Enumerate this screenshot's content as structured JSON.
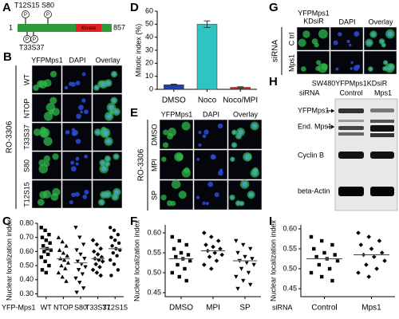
{
  "panels": {
    "A": {
      "label": "A",
      "sites": [
        "T12S15",
        "S80",
        "T33S37"
      ],
      "start": "1",
      "end": "857",
      "domain": "Kinase",
      "phospho": "P"
    },
    "B": {
      "label": "B",
      "columns": [
        "YFPMps1",
        "DAPI",
        "Overlay"
      ],
      "side": "RO-3306",
      "rows": [
        "WT",
        "NTOP",
        "T33S37",
        "S80",
        "T12S15"
      ]
    },
    "E": {
      "label": "E",
      "columns": [
        "YFPMps1",
        "DAPI",
        "Overlay"
      ],
      "side": "RO-3306",
      "rows": [
        "DMSO",
        "MPI",
        "SP"
      ]
    },
    "G": {
      "label": "G",
      "columns": [
        "YFPMps1",
        "DAPI",
        "Overlay"
      ],
      "column_note": "KDsiR",
      "side": "siRNA",
      "rows": [
        "C trl",
        "Mps1"
      ]
    },
    "H": {
      "label": "H",
      "title": "SW480YFPMps1KDsiR",
      "lanes_label": "siRNA",
      "lanes": [
        "Control",
        "Mps1"
      ],
      "bands": [
        "YFPMps1",
        "End. Mps1",
        "Cyclin B",
        "beta-Actin"
      ]
    }
  },
  "chart_data": [
    {
      "type": "bar",
      "panel": "D",
      "ylabel": "Mitotic index (%)",
      "categories": [
        "DMSO",
        "Noco",
        "Noco/MPI"
      ],
      "values": [
        3.5,
        50,
        1.5
      ],
      "errors": [
        0.5,
        2.5,
        0.5
      ],
      "colors": [
        "#1f3fb0",
        "#2ec4c4",
        "#d02020"
      ],
      "ylim": [
        0,
        60
      ],
      "yticks": [
        0,
        10,
        20,
        30,
        40,
        50,
        60
      ]
    },
    {
      "type": "strip",
      "panel": "C",
      "ylabel": "Nuclear localization index",
      "xlabel": "YFP-Mps1",
      "categories": [
        "WT",
        "NTOP",
        "S80",
        "T33S37",
        "T12S15"
      ],
      "values": [
        [
          0.77,
          0.75,
          0.72,
          0.7,
          0.68,
          0.66,
          0.64,
          0.62,
          0.61,
          0.6,
          0.58,
          0.56,
          0.53,
          0.5,
          0.47,
          0.45
        ],
        [
          0.7,
          0.67,
          0.64,
          0.61,
          0.59,
          0.57,
          0.55,
          0.54,
          0.52,
          0.5,
          0.48,
          0.45,
          0.42,
          0.39
        ],
        [
          0.77,
          0.7,
          0.65,
          0.61,
          0.58,
          0.55,
          0.53,
          0.51,
          0.49,
          0.47,
          0.44,
          0.41,
          0.38,
          0.34,
          0.31
        ],
        [
          0.68,
          0.65,
          0.62,
          0.6,
          0.58,
          0.56,
          0.55,
          0.54,
          0.53,
          0.51,
          0.49,
          0.47,
          0.45,
          0.43
        ],
        [
          0.77,
          0.75,
          0.72,
          0.7,
          0.68,
          0.66,
          0.64,
          0.62,
          0.61,
          0.59,
          0.57,
          0.54,
          0.51,
          0.47,
          0.43
        ]
      ],
      "means": [
        0.62,
        0.55,
        0.52,
        0.55,
        0.62
      ],
      "markers": [
        "square",
        "triangle",
        "triangle-down",
        "diamond",
        "circle"
      ],
      "color": "#000000",
      "ylim": [
        0.28,
        0.8
      ],
      "yticks": [
        {
          "value": 0.3,
          "label": "0.30"
        },
        {
          "value": 0.4,
          "label": "0.40"
        },
        {
          "value": 0.5,
          "label": "0.50"
        },
        {
          "value": 0.6,
          "label": "0.60"
        },
        {
          "value": 0.7,
          "label": "0.70"
        },
        {
          "value": 0.8,
          "label": "0.80"
        }
      ]
    },
    {
      "type": "strip",
      "panel": "F",
      "ylabel": "Nuclear localization index",
      "categories": [
        "DMSO",
        "MPI",
        "SP"
      ],
      "values": [
        [
          0.59,
          0.58,
          0.57,
          0.56,
          0.55,
          0.545,
          0.54,
          0.535,
          0.53,
          0.52,
          0.51,
          0.5,
          0.49,
          0.48
        ],
        [
          0.6,
          0.59,
          0.58,
          0.57,
          0.565,
          0.56,
          0.555,
          0.55,
          0.545,
          0.54,
          0.53,
          0.52,
          0.51
        ],
        [
          0.58,
          0.57,
          0.56,
          0.55,
          0.54,
          0.535,
          0.53,
          0.525,
          0.52,
          0.51,
          0.5,
          0.49,
          0.48,
          0.47,
          0.46
        ]
      ],
      "means": [
        0.535,
        0.555,
        0.53
      ],
      "markers": [
        "square",
        "diamond",
        "triangle-down"
      ],
      "color": "#000000",
      "ylim": [
        0.44,
        0.62
      ],
      "yticks": [
        0.45,
        {
          "value": 0.5,
          "label": "0.50"
        },
        0.55,
        {
          "value": 0.6,
          "label": "0.60"
        }
      ]
    },
    {
      "type": "strip",
      "panel": "I",
      "ylabel": "Nuclear localization index",
      "xlabel": "siRNA",
      "categories": [
        "Control",
        "Mps1"
      ],
      "values": [
        [
          0.58,
          0.57,
          0.56,
          0.55,
          0.54,
          0.535,
          0.53,
          0.525,
          0.52,
          0.51,
          0.5,
          0.49,
          0.48,
          0.47
        ],
        [
          0.59,
          0.58,
          0.57,
          0.56,
          0.55,
          0.54,
          0.535,
          0.53,
          0.52,
          0.51,
          0.5,
          0.49,
          0.48
        ]
      ],
      "means": [
        0.525,
        0.535
      ],
      "markers": [
        "square",
        "diamond"
      ],
      "color": "#000000",
      "ylim": [
        0.43,
        0.61
      ],
      "yticks": [
        0.45,
        {
          "value": 0.5,
          "label": "0.50"
        },
        0.55,
        {
          "value": 0.6,
          "label": "0.60"
        }
      ]
    }
  ]
}
